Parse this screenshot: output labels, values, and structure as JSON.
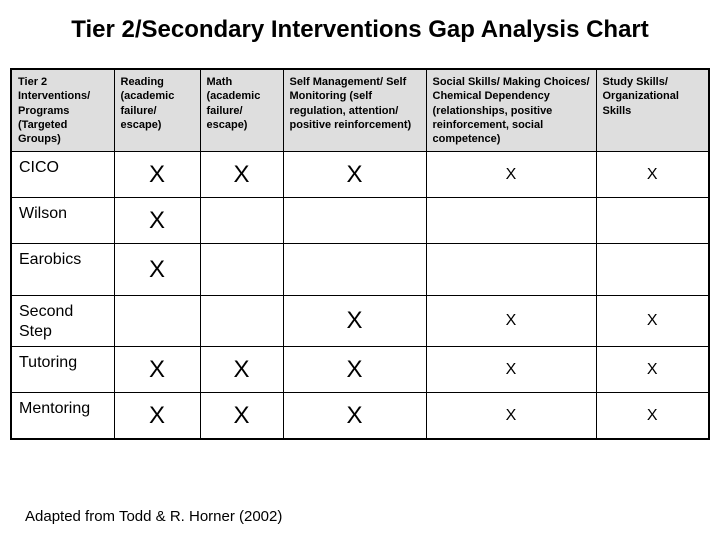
{
  "title": "Tier 2/Secondary Interventions Gap Analysis Chart",
  "footer": "Adapted from Todd & R. Horner (2002)",
  "colors": {
    "background": "#ffffff",
    "header_bg": "#dedede",
    "border": "#000000",
    "text": "#000000"
  },
  "table": {
    "header": [
      "Tier 2 Interventions/ Programs (Targeted Groups)",
      "Reading (academic failure/ escape)",
      "Math (academic failure/ escape)",
      "Self Management/ Self Monitoring (self regulation, attention/ positive reinforcement)",
      "Social Skills/ Making Choices/ Chemical Dependency (relationships, positive reinforcement, social competence)",
      "Study Skills/ Organizational Skills"
    ],
    "mark_sizes": [
      "large",
      "large",
      "large",
      "small",
      "small"
    ],
    "rows": [
      {
        "label": "CICO",
        "marks": [
          "X",
          "X",
          "X",
          "X",
          "X"
        ]
      },
      {
        "label": "Wilson",
        "marks": [
          "X",
          "",
          "",
          "",
          ""
        ]
      },
      {
        "label": "Earobics",
        "marks": [
          "X",
          "",
          "",
          "",
          ""
        ]
      },
      {
        "label": "Second Step",
        "marks": [
          "",
          "",
          "X",
          "X",
          "X"
        ]
      },
      {
        "label": "Tutoring",
        "marks": [
          "X",
          "X",
          "X",
          "X",
          "X"
        ]
      },
      {
        "label": "Mentoring",
        "marks": [
          "X",
          "X",
          "X",
          "X",
          "X"
        ]
      }
    ]
  },
  "chart_data": {
    "type": "table",
    "title": "Tier 2/Secondary Interventions Gap Analysis Chart",
    "columns": [
      "Tier 2 Interventions/ Programs (Targeted Groups)",
      "Reading (academic failure/ escape)",
      "Math (academic failure/ escape)",
      "Self Management/ Self Monitoring (self regulation, attention/ positive reinforcement)",
      "Social Skills/ Making Choices/ Chemical Dependency (relationships, positive reinforcement, social competence)",
      "Study Skills/ Organizational Skills"
    ],
    "rows": [
      [
        "CICO",
        "X",
        "X",
        "X",
        "X",
        "X"
      ],
      [
        "Wilson",
        "X",
        "",
        "",
        "",
        ""
      ],
      [
        "Earobics",
        "X",
        "",
        "",
        "",
        ""
      ],
      [
        "Second Step",
        "",
        "",
        "X",
        "X",
        "X"
      ],
      [
        "Tutoring",
        "X",
        "X",
        "X",
        "X",
        "X"
      ],
      [
        "Mentoring",
        "X",
        "X",
        "X",
        "X",
        "X"
      ]
    ]
  }
}
